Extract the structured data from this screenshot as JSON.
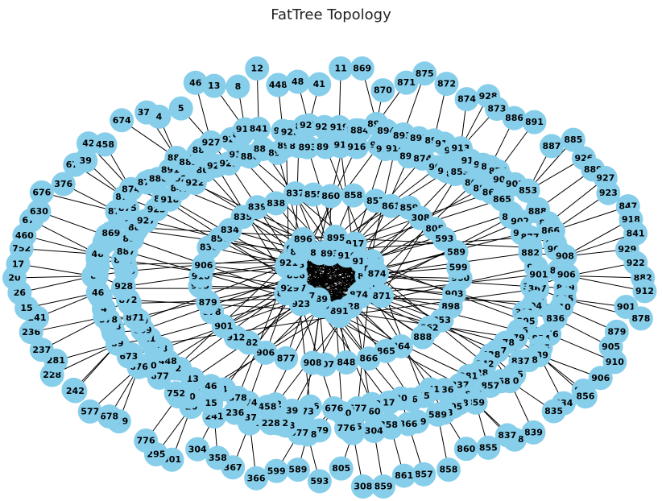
{
  "title": "FatTree Topology",
  "style": {
    "node_color": "#87CEEB",
    "edge_color": "#000000",
    "background": "#ffffff"
  },
  "visible_node_labels": [
    "869",
    "870",
    "871",
    "875",
    "872",
    "874",
    "928",
    "873",
    "886",
    "891",
    "887",
    "885",
    "926",
    "889",
    "927",
    "923",
    "847",
    "918",
    "841",
    "929",
    "922",
    "866",
    "925",
    "921",
    "919",
    "880",
    "884",
    "896",
    "894",
    "890",
    "893",
    "892",
    "895",
    "917",
    "916",
    "913",
    "911",
    "914",
    "899",
    "874",
    "900",
    "903",
    "898",
    "853",
    "862",
    "888",
    "864",
    "865",
    "866",
    "848",
    "907",
    "908",
    "877",
    "906",
    "882",
    "912",
    "901",
    "878",
    "879",
    "905",
    "910",
    "906",
    "836",
    "856",
    "834",
    "835",
    "839",
    "838",
    "837",
    "855",
    "860",
    "858",
    "857",
    "861",
    "859",
    "308",
    "805",
    "593",
    "589",
    "599",
    "366",
    "367",
    "358",
    "304",
    "301",
    "295",
    "776",
    "679",
    "678",
    "577",
    "428",
    "242",
    "228",
    "281",
    "237",
    "236",
    "241",
    "15",
    "26",
    "20",
    "17",
    "752",
    "460",
    "677",
    "630",
    "676",
    "376",
    "673",
    "39",
    "42",
    "458",
    "674",
    "378",
    "4",
    "5",
    "46",
    "13",
    "8",
    "12",
    "448",
    "48",
    "41",
    "11"
  ],
  "graph": {
    "type": "network",
    "layout": "spring",
    "rings": [
      "core mesh",
      "aggregation ring",
      "edge ring",
      "host fringe"
    ]
  }
}
